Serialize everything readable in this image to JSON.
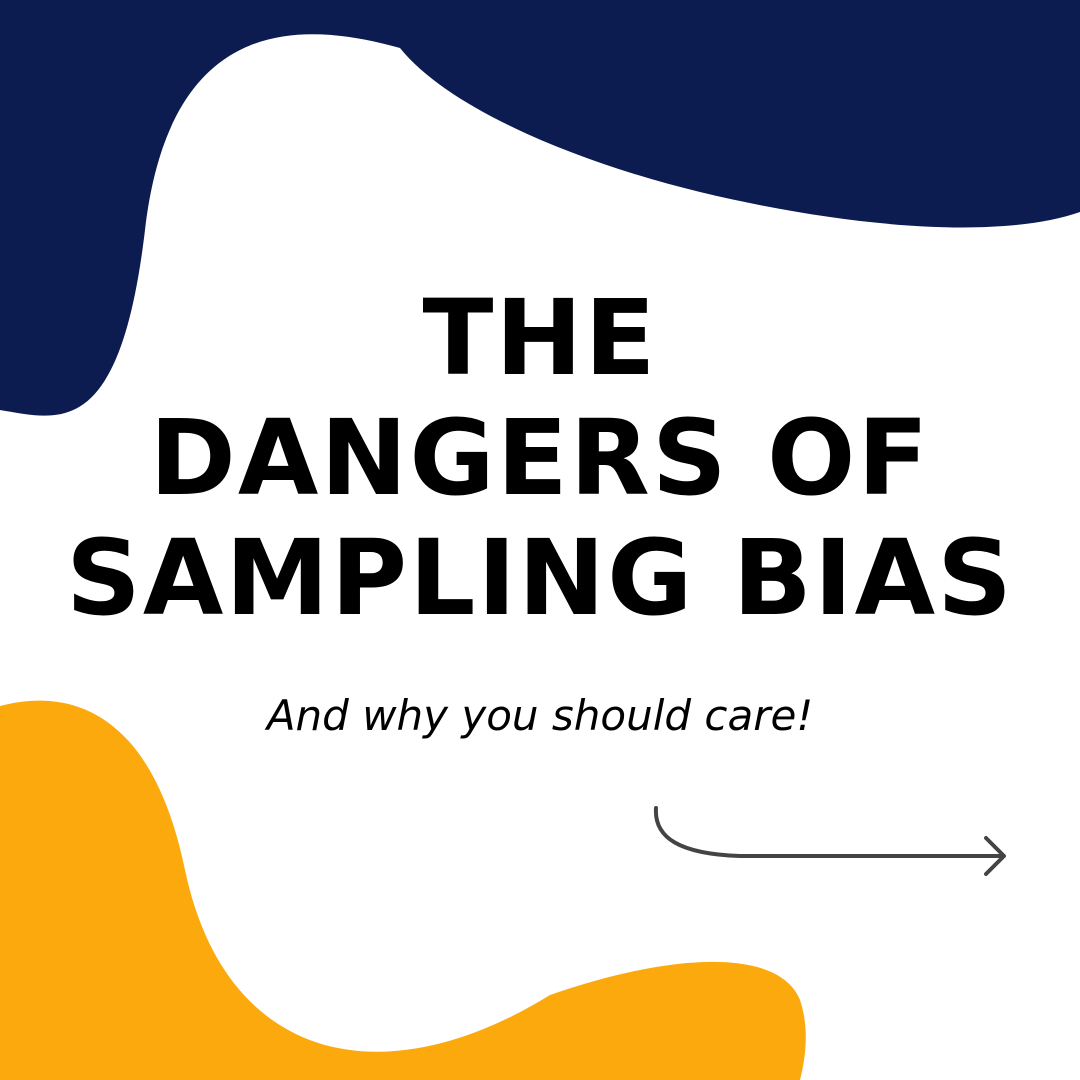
{
  "colors": {
    "background": "#ffffff",
    "navy": "#0d1c50",
    "orange": "#fba90c",
    "text": "#000000",
    "arrow": "#444444"
  },
  "title": {
    "lines": [
      "THE",
      "DANGERS OF",
      "SAMPLING BIAS"
    ]
  },
  "subtitle": "And why you should care!",
  "icons": {
    "arrow": "curved-arrow-right-icon"
  }
}
